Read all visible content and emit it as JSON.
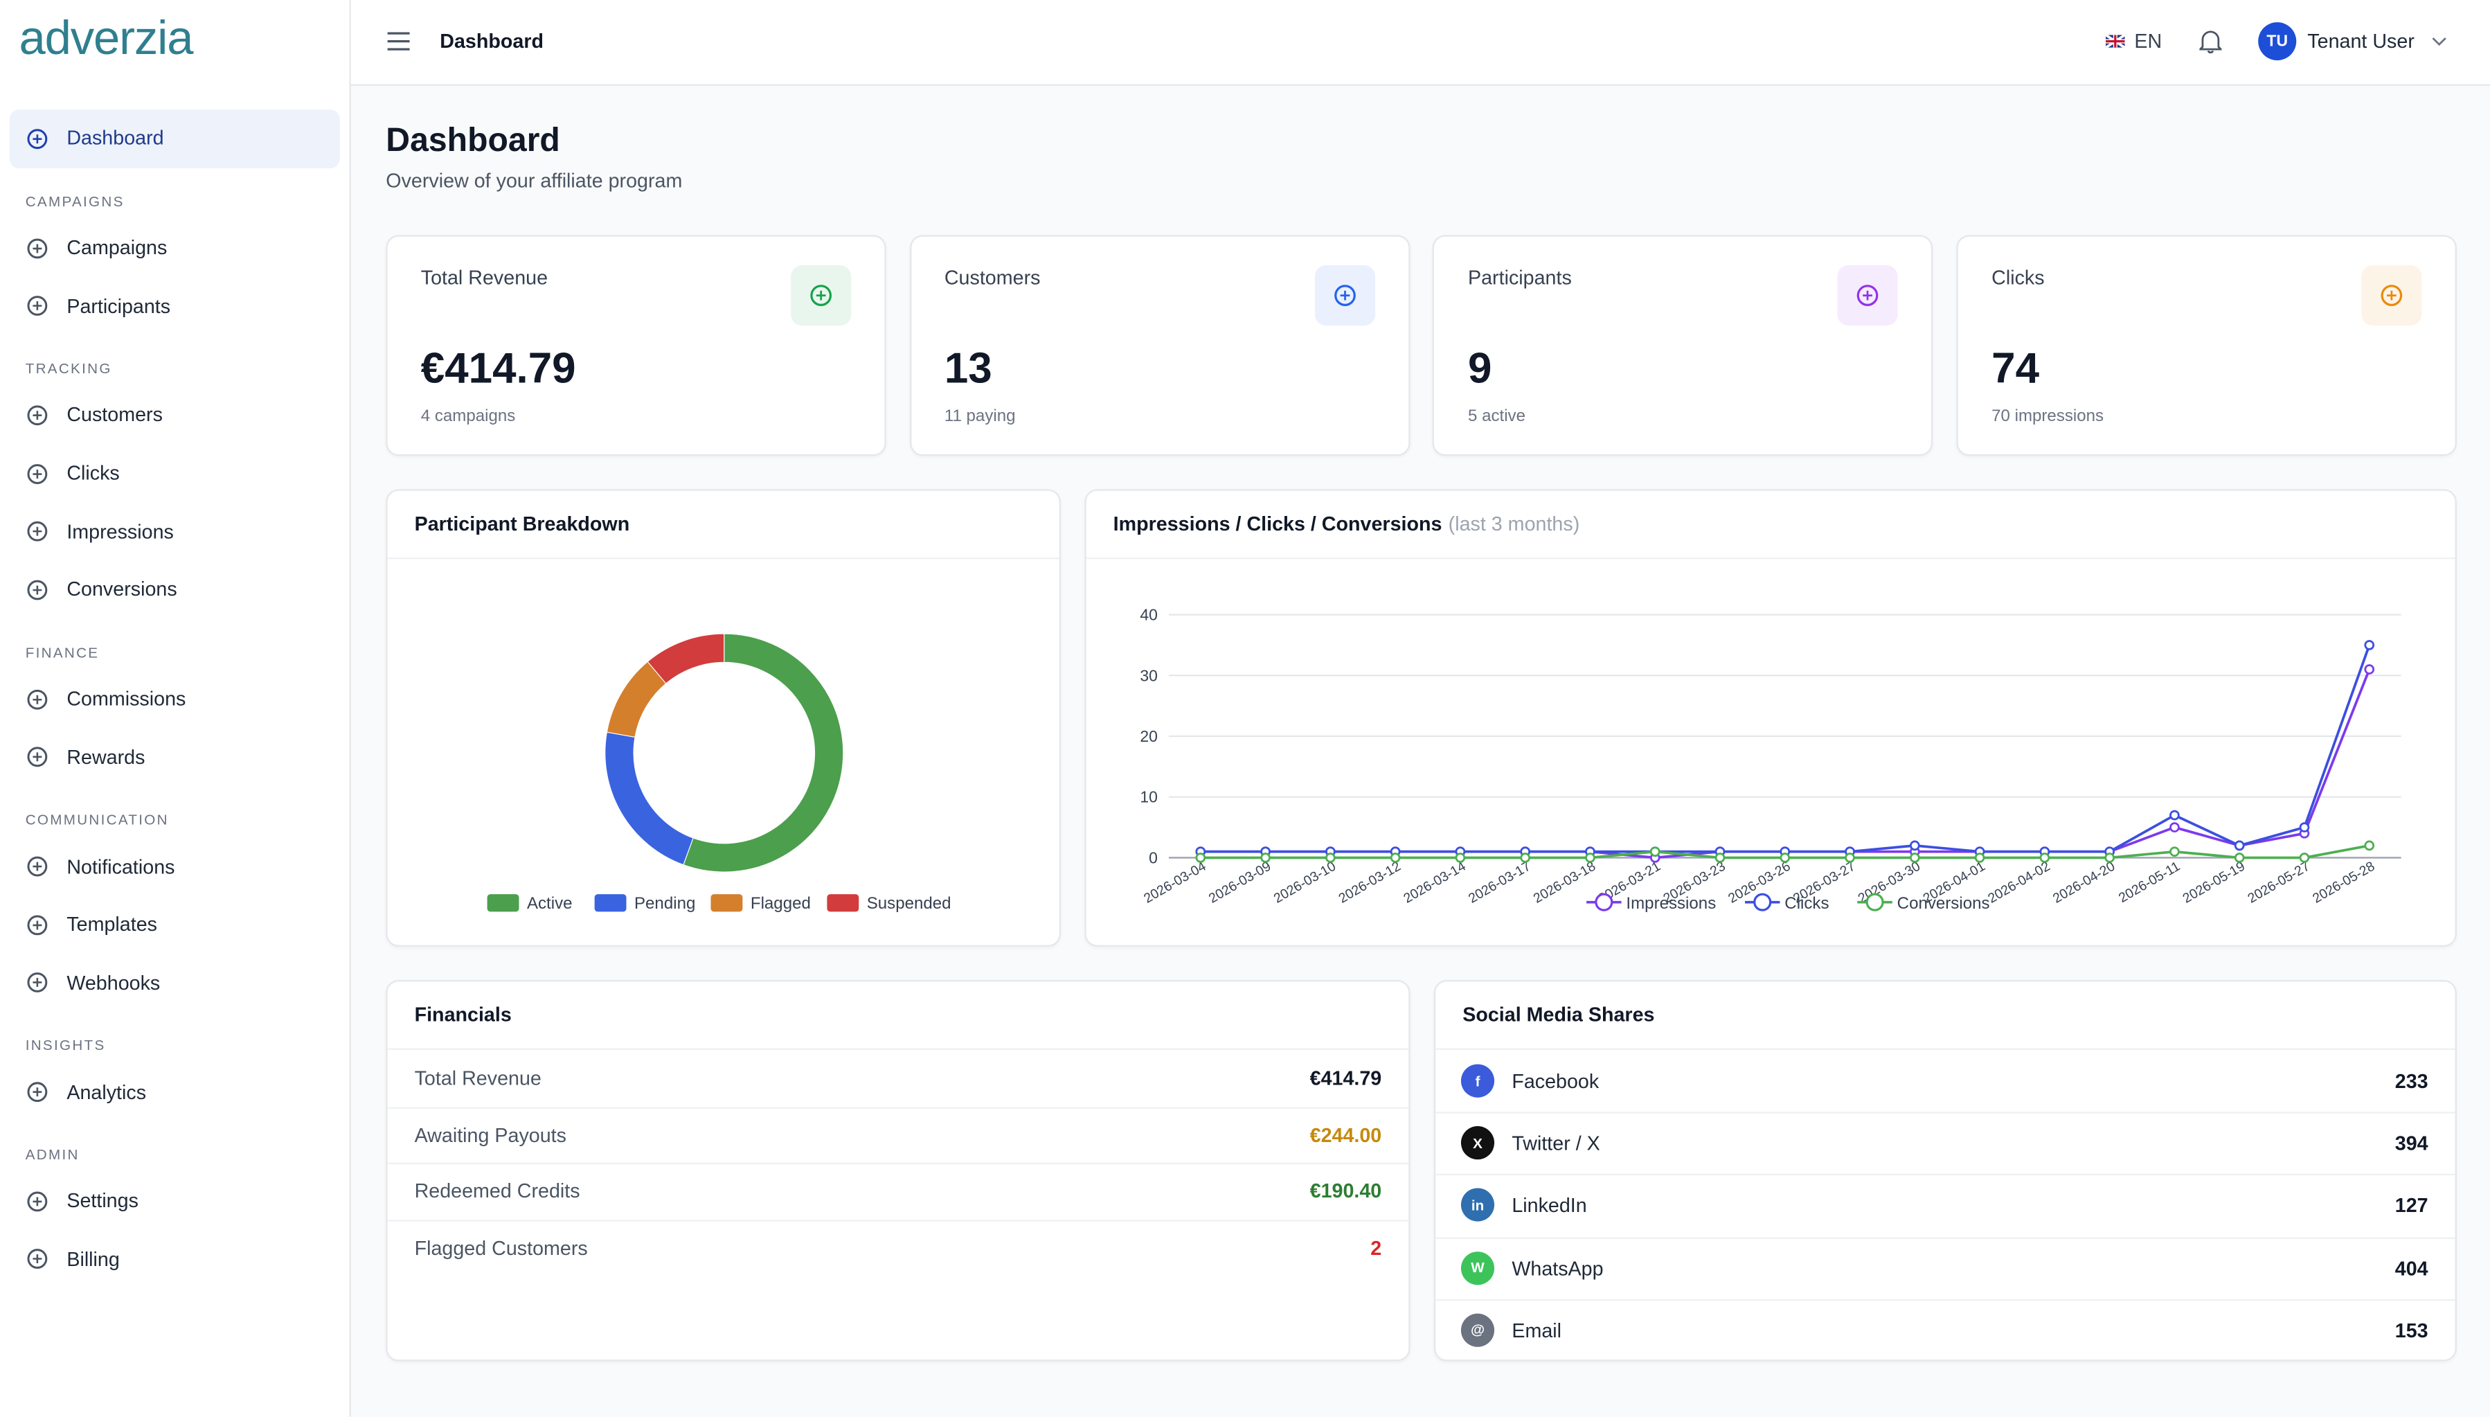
{
  "sidebar": {
    "logo": "adverzia",
    "nav": [
      {
        "label": "Dashboard",
        "active": true
      }
    ],
    "sections": [
      {
        "title": "CAMPAIGNS",
        "items": [
          "Campaigns",
          "Participants"
        ]
      },
      {
        "title": "TRACKING",
        "items": [
          "Customers",
          "Clicks",
          "Impressions",
          "Conversions"
        ]
      },
      {
        "title": "FINANCE",
        "items": [
          "Commissions",
          "Rewards"
        ]
      },
      {
        "title": "COMMUNICATION",
        "items": [
          "Notifications",
          "Templates",
          "Webhooks"
        ]
      },
      {
        "title": "INSIGHTS",
        "items": [
          "Analytics"
        ]
      },
      {
        "title": "ADMIN",
        "items": [
          "Settings",
          "Billing"
        ]
      }
    ]
  },
  "header": {
    "page": "Dashboard",
    "language": "EN",
    "avatar": "TU",
    "user": "Tenant User"
  },
  "page": {
    "title": "Dashboard",
    "subtitle": "Overview of your affiliate program"
  },
  "stats": [
    {
      "label": "Total Revenue",
      "value": "€414.79",
      "note": "4 campaigns",
      "color": "#16a34a"
    },
    {
      "label": "Customers",
      "value": "13",
      "note": "11 paying",
      "color": "#2563eb"
    },
    {
      "label": "Participants",
      "value": "9",
      "note": "5 active",
      "color": "#9333ea"
    },
    {
      "label": "Clicks",
      "value": "74",
      "note": "70 impressions",
      "color": "#ea8a0c"
    }
  ],
  "chart_data": [
    {
      "type": "pie",
      "title": "Participant Breakdown",
      "categories": [
        "Active",
        "Pending",
        "Flagged",
        "Suspended"
      ],
      "values": [
        5,
        2,
        1,
        1
      ],
      "colors": [
        "#4c9f4c",
        "#3a63e0",
        "#d47f2c",
        "#d23c3c"
      ],
      "donut": true
    },
    {
      "type": "line",
      "title": "Impressions / Clicks / Conversions",
      "subtitle": "(last 3 months)",
      "categories": [
        "2026-03-04",
        "2026-03-09",
        "2026-03-10",
        "2026-03-12",
        "2026-03-14",
        "2026-03-17",
        "2026-03-18",
        "2026-03-21",
        "2026-03-23",
        "2026-03-26",
        "2026-03-27",
        "2026-03-30",
        "2026-04-01",
        "2026-04-02",
        "2026-04-20",
        "2026-05-11",
        "2026-05-19",
        "2026-05-27",
        "2026-05-28"
      ],
      "series": [
        {
          "name": "Impressions",
          "color": "#7c3aed",
          "values": [
            1,
            1,
            1,
            1,
            1,
            1,
            1,
            0,
            1,
            1,
            1,
            1,
            1,
            1,
            1,
            5,
            2,
            4,
            31
          ]
        },
        {
          "name": "Clicks",
          "color": "#3b4fe0",
          "values": [
            1,
            1,
            1,
            1,
            1,
            1,
            1,
            1,
            1,
            1,
            1,
            2,
            1,
            1,
            1,
            7,
            2,
            5,
            35
          ]
        },
        {
          "name": "Conversions",
          "color": "#4caf50",
          "values": [
            0,
            0,
            0,
            0,
            0,
            0,
            0,
            1,
            0,
            0,
            0,
            0,
            0,
            0,
            0,
            1,
            0,
            0,
            2
          ]
        }
      ],
      "ylim": [
        0,
        40
      ],
      "yticks": [
        0,
        10,
        20,
        30,
        40
      ],
      "grid": true
    }
  ],
  "financials": {
    "title": "Financials",
    "rows": [
      {
        "label": "Total Revenue",
        "value": "€414.79",
        "color": "#111827"
      },
      {
        "label": "Awaiting Payouts",
        "value": "€244.00",
        "color": "#c58a0a"
      },
      {
        "label": "Redeemed Credits",
        "value": "€190.40",
        "color": "#2e7d32"
      },
      {
        "label": "Flagged Customers",
        "value": "2",
        "color": "#dc2626"
      }
    ]
  },
  "social": {
    "title": "Social Media Shares",
    "rows": [
      {
        "icon": "f",
        "name": "Facebook",
        "count": "233",
        "color": "#3b5bdb"
      },
      {
        "icon": "X",
        "name": "Twitter / X",
        "count": "394",
        "color": "#111111"
      },
      {
        "icon": "in",
        "name": "LinkedIn",
        "count": "127",
        "color": "#2f6fb0"
      },
      {
        "icon": "W",
        "name": "WhatsApp",
        "count": "404",
        "color": "#3cc45a"
      },
      {
        "icon": "@",
        "name": "Email",
        "count": "153",
        "color": "#6b7280"
      }
    ]
  }
}
